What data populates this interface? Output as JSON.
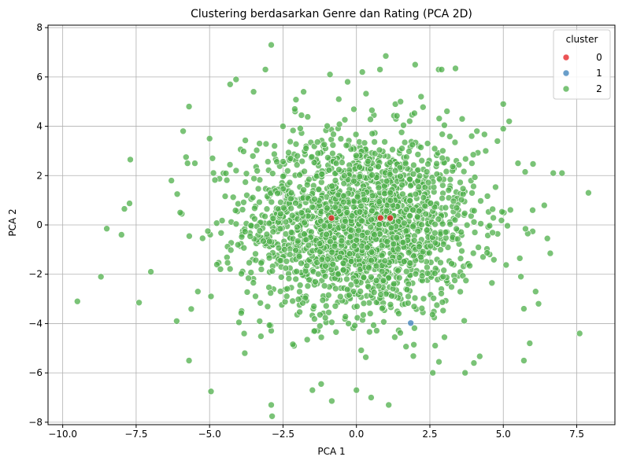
{
  "chart_data": {
    "type": "scatter",
    "title": "Clustering berdasarkan Genre dan Rating (PCA 2D)",
    "xlabel": "PCA 1",
    "ylabel": "PCA 2",
    "xlim": [
      -10.5,
      8.8
    ],
    "ylim": [
      -8.1,
      8.1
    ],
    "xticks": [
      -10.0,
      -7.5,
      -5.0,
      -2.5,
      0.0,
      2.5,
      5.0,
      7.5
    ],
    "xtick_labels": [
      "−10.0",
      "−7.5",
      "−5.0",
      "−2.5",
      "0.0",
      "2.5",
      "5.0",
      "7.5"
    ],
    "yticks": [
      -8,
      -6,
      -4,
      -2,
      0,
      2,
      4,
      6,
      8
    ],
    "ytick_labels": [
      "−8",
      "−6",
      "−4",
      "−2",
      "0",
      "2",
      "4",
      "6",
      "8"
    ],
    "grid": true,
    "legend": {
      "title": "cluster",
      "position": "top-right"
    },
    "series": [
      {
        "name": "0",
        "color": "#e41a1c",
        "points": [
          [
            -0.85,
            0.28
          ],
          [
            0.82,
            0.28
          ],
          [
            1.15,
            0.28
          ]
        ]
      },
      {
        "name": "1",
        "color": "#377eb8",
        "points": [
          [
            1.85,
            -3.98
          ]
        ]
      },
      {
        "name": "2",
        "color": "#4daf4a",
        "points": [
          [
            -9.5,
            -3.1
          ],
          [
            -8.7,
            -2.1
          ],
          [
            -8.5,
            -0.15
          ],
          [
            -8.0,
            -0.4
          ],
          [
            -7.9,
            0.65
          ],
          [
            -7.7,
            2.65
          ],
          [
            -7.4,
            -3.15
          ],
          [
            -7.0,
            -1.9
          ],
          [
            -6.3,
            1.8
          ],
          [
            -6.1,
            1.25
          ],
          [
            -6.0,
            0.5
          ],
          [
            -5.9,
            3.8
          ],
          [
            -5.8,
            2.75
          ],
          [
            -5.75,
            2.5
          ],
          [
            -5.7,
            4.8
          ],
          [
            -5.7,
            -5.5
          ],
          [
            -5.5,
            2.5
          ],
          [
            -5.4,
            -2.7
          ],
          [
            -5.0,
            3.5
          ],
          [
            -4.95,
            -2.9
          ],
          [
            -4.95,
            -6.75
          ],
          [
            -4.9,
            2.7
          ],
          [
            -4.3,
            5.7
          ],
          [
            -4.1,
            5.9
          ],
          [
            -4.0,
            -3.95
          ],
          [
            -3.8,
            -5.2
          ],
          [
            -3.5,
            5.4
          ],
          [
            -3.3,
            3.3
          ],
          [
            -3.1,
            6.3
          ],
          [
            -2.9,
            7.3
          ],
          [
            -2.9,
            -7.3
          ],
          [
            -2.5,
            4.0
          ],
          [
            -2.1,
            4.7
          ],
          [
            -1.8,
            5.4
          ],
          [
            -1.5,
            -6.7
          ],
          [
            -1.2,
            -6.45
          ],
          [
            -0.9,
            6.1
          ],
          [
            -0.6,
            5.1
          ],
          [
            -0.3,
            5.8
          ],
          [
            0.0,
            -6.7
          ],
          [
            0.2,
            6.2
          ],
          [
            0.5,
            -7.0
          ],
          [
            0.8,
            6.3
          ],
          [
            1.0,
            6.85
          ],
          [
            1.1,
            -7.3
          ],
          [
            1.5,
            5.0
          ],
          [
            2.0,
            6.5
          ],
          [
            2.2,
            5.2
          ],
          [
            2.6,
            -6.0
          ],
          [
            2.8,
            6.3
          ],
          [
            2.9,
            6.3
          ],
          [
            3.6,
            4.3
          ],
          [
            3.7,
            -6.0
          ],
          [
            4.0,
            -5.6
          ],
          [
            4.1,
            3.8
          ],
          [
            4.4,
            3.0
          ],
          [
            4.8,
            3.4
          ],
          [
            5.0,
            4.9
          ],
          [
            5.0,
            3.9
          ],
          [
            5.2,
            4.2
          ],
          [
            5.5,
            2.5
          ],
          [
            5.7,
            -3.4
          ],
          [
            5.7,
            -5.5
          ],
          [
            5.9,
            -4.8
          ],
          [
            6.0,
            0.6
          ],
          [
            6.1,
            -2.7
          ],
          [
            6.2,
            -3.2
          ],
          [
            6.5,
            -0.55
          ],
          [
            6.6,
            -1.15
          ],
          [
            6.7,
            2.1
          ],
          [
            7.0,
            2.1
          ],
          [
            7.6,
            -4.4
          ],
          [
            7.9,
            1.3
          ]
        ],
        "cloud": {
          "count": 2000,
          "center_x": 0.15,
          "center_y": 0.0,
          "std_x": 1.95,
          "std_y": 1.85
        }
      }
    ]
  }
}
